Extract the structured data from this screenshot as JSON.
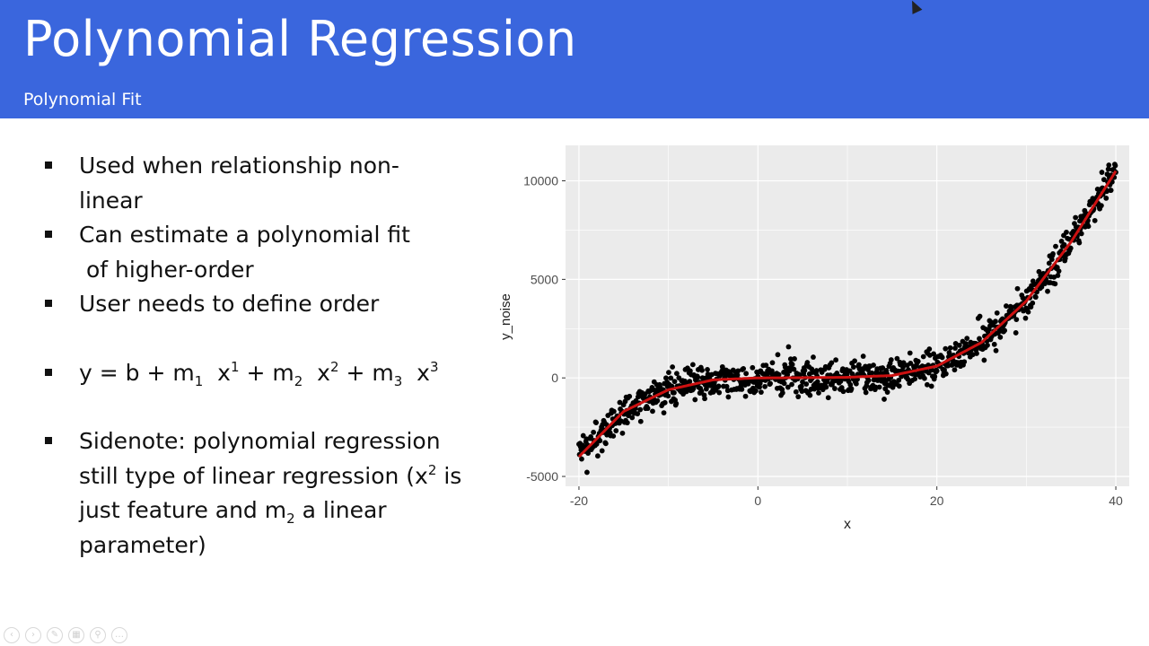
{
  "slide": {
    "title": "Polynomial Regression",
    "subtitle": "Polynomial Fit"
  },
  "bullets": {
    "b1_line1": "Used when relationship non-",
    "b1_line2": "linear",
    "b2_line1": "Can estimate a polynomial fit",
    "b2_line2": " of higher-order",
    "b3": "User needs to define order",
    "formula": {
      "y": "y = b + m",
      "s1": "1",
      "x1": "x",
      "p1": "1",
      "plus2": " + m",
      "s2": "2",
      "x2": "x",
      "p2": "2",
      "plus3": " + m",
      "s3": "3",
      "x3": "x",
      "p3": "3"
    },
    "sidenote": {
      "l1": "Sidenote: polynomial regression",
      "l2a": "still type of linear regression (x",
      "l2sup": "2",
      "l2b": " is",
      "l3a": "just feature and m",
      "l3sub": "2",
      "l3b": " a linear",
      "l4": "parameter)"
    }
  },
  "chart_data": {
    "type": "scatter",
    "xlabel": "x",
    "ylabel": "y_noise",
    "xlim": [
      -21.5,
      41.5
    ],
    "ylim": [
      -5500,
      11800
    ],
    "x_ticks": [
      -20,
      0,
      20,
      40
    ],
    "x_tick_labels": [
      "-20",
      "0",
      "20",
      "40"
    ],
    "y_ticks": [
      -5000,
      0,
      5000,
      10000
    ],
    "y_tick_labels": [
      "-5000",
      "0",
      "5000",
      "10000"
    ],
    "grid": true,
    "background": "#ebebeb",
    "point_color": "#000000",
    "fit_color": "#cc1010",
    "fit_line": {
      "type": "cubic",
      "points": [
        [
          -20,
          -4000
        ],
        [
          -15,
          -1700
        ],
        [
          -10,
          -600
        ],
        [
          -5,
          -100
        ],
        [
          0,
          0
        ],
        [
          5,
          10
        ],
        [
          10,
          30
        ],
        [
          15,
          120
        ],
        [
          20,
          600
        ],
        [
          25,
          1800
        ],
        [
          30,
          3900
        ],
        [
          35,
          6900
        ],
        [
          40,
          10500
        ]
      ]
    },
    "samples": 1000,
    "x_range": [
      -20,
      40
    ],
    "noise_sd": 450
  },
  "toolbar": {
    "icons": [
      "prev-icon",
      "next-icon",
      "pen-icon",
      "slides-icon",
      "zoom-icon",
      "more-icon"
    ],
    "glyphs": [
      "‹",
      "›",
      "✎",
      "▦",
      "⚲",
      "…"
    ]
  }
}
